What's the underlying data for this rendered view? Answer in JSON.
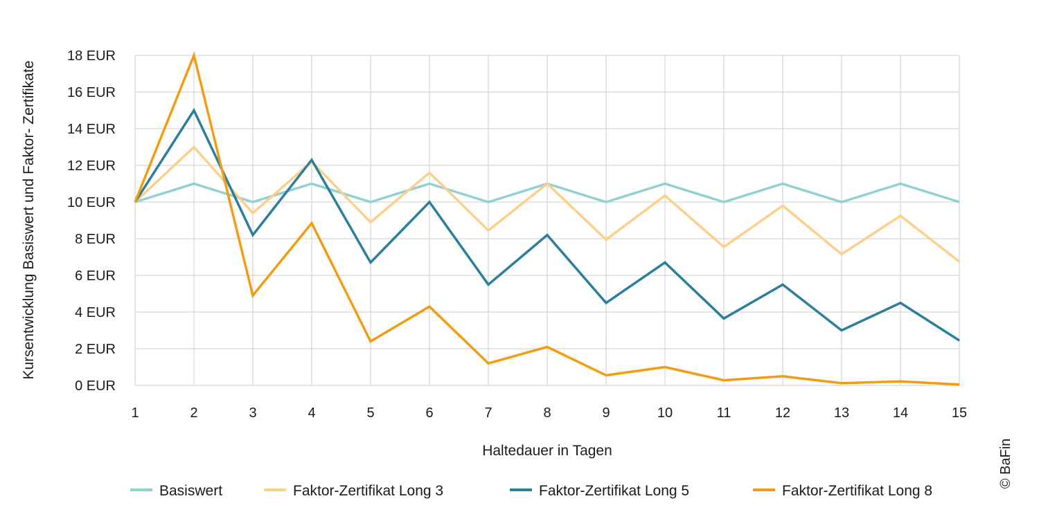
{
  "chart_data": {
    "type": "line",
    "title": "",
    "xlabel": "Haltedauer in Tagen",
    "ylabel": "Kursentwicklung Basiswert und Faktor- Zertifikate",
    "x": [
      1,
      2,
      3,
      4,
      5,
      6,
      7,
      8,
      9,
      10,
      11,
      12,
      13,
      14,
      15
    ],
    "x_tick_labels": [
      "1",
      "2",
      "3",
      "4",
      "5",
      "6",
      "7",
      "8",
      "9",
      "10",
      "11",
      "12",
      "13",
      "14",
      "15"
    ],
    "ylim": [
      0,
      18
    ],
    "y_ticks": [
      0,
      2,
      4,
      6,
      8,
      10,
      12,
      14,
      16,
      18
    ],
    "y_tick_labels": [
      "0 EUR",
      "2 EUR",
      "4 EUR",
      "6 EUR",
      "8 EUR",
      "10 EUR",
      "12 EUR",
      "14 EUR",
      "16 EUR",
      "18 EUR"
    ],
    "grid": true,
    "legend_position": "bottom",
    "series": [
      {
        "name": "Basiswert",
        "color": "#93d0d3",
        "values": [
          10,
          11,
          10,
          11,
          10,
          11,
          10,
          11,
          10,
          11,
          10,
          11,
          10,
          11,
          10
        ]
      },
      {
        "name": "Faktor-Zertifikat Long 3",
        "color": "#fdcf8a",
        "values": [
          10,
          13,
          9.4,
          12.2,
          8.9,
          11.6,
          8.45,
          11,
          7.95,
          10.35,
          7.55,
          9.8,
          7.15,
          9.25,
          6.75
        ]
      },
      {
        "name": "Faktor-Zertifikat Long 5",
        "color": "#2c7f9c",
        "values": [
          10,
          15,
          8.2,
          12.3,
          6.7,
          10,
          5.5,
          8.2,
          4.5,
          6.7,
          3.65,
          5.5,
          3,
          4.5,
          2.45
        ]
      },
      {
        "name": "Faktor-Zertifikat Long 8",
        "color": "#f39c12",
        "values": [
          10,
          18,
          4.9,
          8.85,
          2.4,
          4.3,
          1.2,
          2.1,
          0.55,
          1,
          0.28,
          0.5,
          0.12,
          0.22,
          0.05
        ]
      }
    ]
  },
  "credit": "© BaFin"
}
